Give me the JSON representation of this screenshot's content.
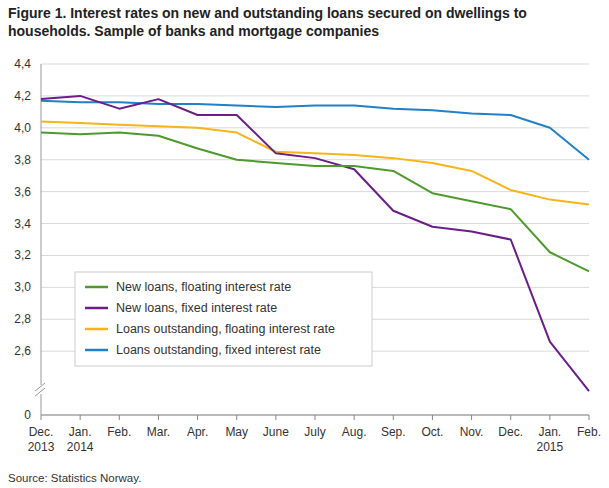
{
  "chart_data": {
    "type": "line",
    "title": "Figure 1. Interest rates on new and outstanding loans secured on dwellings to households. Sample of banks and mortgage companies",
    "source": "Source: Statistics Norway.",
    "categories": [
      "Dec. 2013",
      "Jan. 2014",
      "Feb.",
      "Mar.",
      "Apr.",
      "May",
      "June",
      "July",
      "Aug.",
      "Sep.",
      "Oct.",
      "Nov.",
      "Dec.",
      "Jan. 2015",
      "Feb."
    ],
    "series": [
      {
        "name": "New loans, floating interest rate",
        "color": "#4e9a2c",
        "values": [
          3.97,
          3.96,
          3.97,
          3.95,
          3.87,
          3.8,
          3.78,
          3.76,
          3.76,
          3.73,
          3.59,
          3.54,
          3.49,
          3.22,
          3.1
        ]
      },
      {
        "name": "New loans, fixed interest rate",
        "color": "#6b1e87",
        "values": [
          4.18,
          4.2,
          4.12,
          4.18,
          4.08,
          4.08,
          3.84,
          3.81,
          3.74,
          3.48,
          3.38,
          3.35,
          3.3,
          2.66,
          2.35
        ]
      },
      {
        "name": "Loans outstanding, floating interest rate",
        "color": "#f4b41a",
        "values": [
          4.04,
          4.03,
          4.02,
          4.01,
          4.0,
          3.97,
          3.85,
          3.84,
          3.83,
          3.81,
          3.78,
          3.73,
          3.61,
          3.55,
          3.52
        ]
      },
      {
        "name": "Loans outstanding, fixed interest rate",
        "color": "#2080c8",
        "values": [
          4.17,
          4.16,
          4.16,
          4.15,
          4.15,
          4.14,
          4.13,
          4.14,
          4.14,
          4.12,
          4.11,
          4.09,
          4.08,
          4.0,
          3.8
        ]
      }
    ],
    "ylim": [
      0,
      4.4
    ],
    "yticks": [
      0,
      {
        "value": 2.6,
        "label": "2,6"
      },
      {
        "value": 2.8,
        "label": "2,8"
      },
      {
        "value": 3.0,
        "label": "3,0"
      },
      {
        "value": 3.2,
        "label": "3,2"
      },
      {
        "value": 3.4,
        "label": "3,4"
      },
      {
        "value": 3.6,
        "label": "3,6"
      },
      {
        "value": 3.8,
        "label": "3,8"
      },
      {
        "value": 4.0,
        "label": "4,0"
      },
      {
        "value": 4.2,
        "label": "4,2"
      },
      {
        "value": 4.4,
        "label": "4,4"
      }
    ],
    "grid": true,
    "legend": "lower left"
  }
}
